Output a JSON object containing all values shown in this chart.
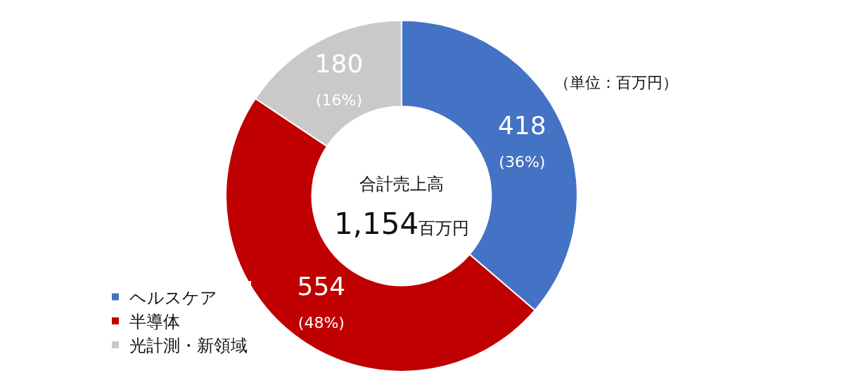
{
  "chart_data": {
    "type": "donut",
    "categories": [
      "ヘルスケア",
      "半導体",
      "光計測・新領域"
    ],
    "values": [
      418,
      554,
      180
    ],
    "colors": [
      "#4472c4",
      "#c00000",
      "#c9c9c9"
    ],
    "value_labels": [
      "418\n(36%)",
      "554\n(48%)",
      "180\n(16%)"
    ],
    "annotations": [
      "合計売上高",
      "1,154百万円",
      "（単位：百万円）"
    ],
    "legend": "bottom left"
  }
}
